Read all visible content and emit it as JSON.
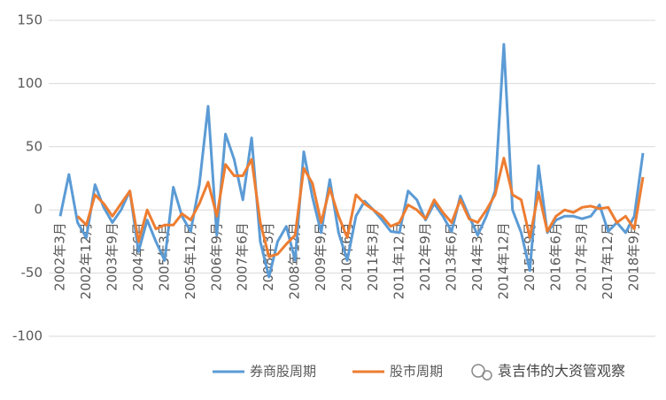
{
  "chart_data": {
    "type": "line",
    "categories": [
      "2002年3月",
      null,
      null,
      "2002年12月",
      null,
      null,
      "2003年9月",
      null,
      null,
      "2004年6月",
      null,
      null,
      "2005年3月",
      null,
      null,
      "2005年12月",
      null,
      null,
      "2006年9月",
      null,
      null,
      "2007年6月",
      null,
      null,
      "2008年3月",
      null,
      null,
      "2008年12月",
      null,
      null,
      "2009年9月",
      null,
      null,
      "2010年6月",
      null,
      null,
      "2011年3月",
      null,
      null,
      "2011年12月",
      null,
      null,
      "2012年9月",
      null,
      null,
      "2013年6月",
      null,
      null,
      "2014年3月",
      null,
      null,
      "2014年12月",
      null,
      null,
      "2015年9月",
      null,
      null,
      "2016年6月",
      null,
      null,
      "2017年3月",
      null,
      null,
      "2017年12月",
      null,
      null,
      "2018年9月",
      null
    ],
    "series": [
      {
        "name": "券商股周期",
        "color": "#5b9bd5",
        "values": [
          -5,
          28,
          -10,
          -22,
          20,
          2,
          -10,
          0,
          15,
          -33,
          -8,
          -25,
          -40,
          18,
          -5,
          -17,
          20,
          82,
          -20,
          60,
          40,
          8,
          57,
          -25,
          -53,
          -25,
          -13,
          -40,
          46,
          10,
          -18,
          24,
          -18,
          -40,
          -5,
          7,
          0,
          -8,
          -17,
          -18,
          15,
          8,
          -8,
          5,
          -5,
          -17,
          11,
          -5,
          -20,
          -5,
          15,
          131,
          0,
          -18,
          -48,
          35,
          -18,
          -8,
          -5,
          -5,
          -7,
          -5,
          4,
          -17,
          -10,
          -18,
          -5,
          45
        ]
      },
      {
        "name": "股市周期",
        "color": "#ed7d31",
        "values": [
          null,
          null,
          -5,
          -12,
          12,
          5,
          -5,
          5,
          15,
          -25,
          0,
          -15,
          -12,
          -12,
          -3,
          -8,
          5,
          22,
          -5,
          36,
          27,
          27,
          40,
          -10,
          -37,
          -35,
          -27,
          -20,
          33,
          21,
          -10,
          17,
          -5,
          -22,
          12,
          5,
          0,
          -5,
          -13,
          -10,
          4,
          0,
          -7,
          8,
          -2,
          -10,
          8,
          -7,
          -10,
          0,
          12,
          41,
          12,
          8,
          -22,
          14,
          -17,
          -5,
          0,
          -2,
          2,
          3,
          1,
          2,
          -10,
          -5,
          -15,
          26
        ]
      }
    ],
    "ylim": [
      -100,
      150
    ],
    "yticks": [
      -100,
      -50,
      0,
      50,
      100,
      150
    ],
    "grid": true,
    "legend": "bottom",
    "annotations": [
      "袁吉伟的大资管观察"
    ]
  }
}
